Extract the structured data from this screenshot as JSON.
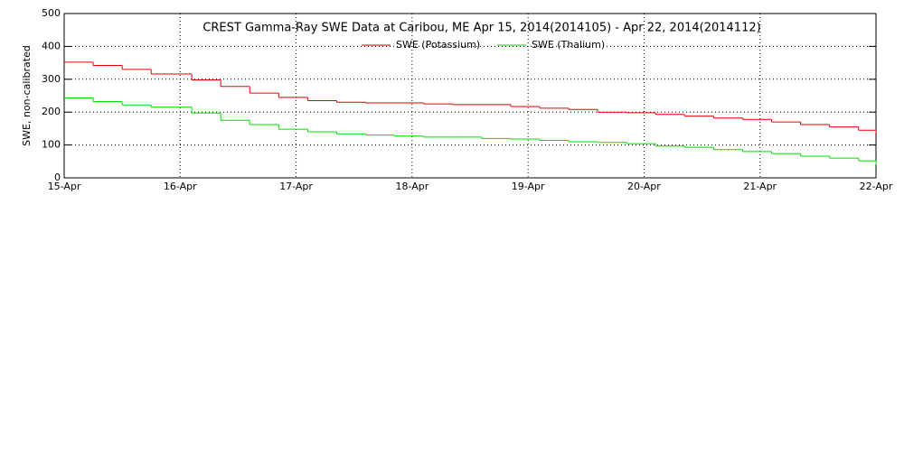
{
  "chart_data": {
    "type": "step-line",
    "title": "CREST Gamma-Ray SWE Data at Caribou, ME   Apr 15, 2014(2014105) - Apr 22, 2014(2014112)",
    "y_label": "SWE, non-calibrated",
    "x": [
      0,
      0.25,
      0.5,
      0.75,
      1,
      1.1,
      1.35,
      1.6,
      1.85,
      2.1,
      2.35,
      2.6,
      2.85,
      3.1,
      3.35,
      3.6,
      3.85,
      4.1,
      4.35,
      4.6,
      4.85,
      5.1,
      5.35,
      5.6,
      5.85,
      6.1,
      6.35,
      6.6,
      6.85,
      7
    ],
    "series": [
      {
        "name": "SWE (Potassium)",
        "color": "#e00000",
        "values": [
          352,
          342,
          330,
          316,
          316,
          298,
          278,
          258,
          245,
          235,
          230,
          228,
          228,
          225,
          223,
          223,
          217,
          212,
          208,
          200,
          198,
          193,
          188,
          182,
          178,
          170,
          162,
          155,
          145,
          135
        ]
      },
      {
        "name": "SWE (Thalium)",
        "color": "#00dd00",
        "values": [
          243,
          232,
          222,
          215,
          215,
          197,
          175,
          162,
          148,
          140,
          134,
          130,
          127,
          124,
          124,
          120,
          118,
          114,
          110,
          108,
          104,
          97,
          93,
          86,
          80,
          74,
          66,
          60,
          52,
          40
        ]
      }
    ],
    "xlim": [
      0,
      7
    ],
    "xticks": [
      {
        "value": 0,
        "label": "15-Apr"
      },
      {
        "value": 1,
        "label": "16-Apr"
      },
      {
        "value": 2,
        "label": "17-Apr"
      },
      {
        "value": 3,
        "label": "18-Apr"
      },
      {
        "value": 4,
        "label": "19-Apr"
      },
      {
        "value": 5,
        "label": "20-Apr"
      },
      {
        "value": 6,
        "label": "21-Apr"
      },
      {
        "value": 7,
        "label": "22-Apr"
      }
    ],
    "ylim": [
      0,
      500
    ],
    "yticks": [
      0,
      100,
      200,
      300,
      400,
      500
    ],
    "grid": true
  }
}
